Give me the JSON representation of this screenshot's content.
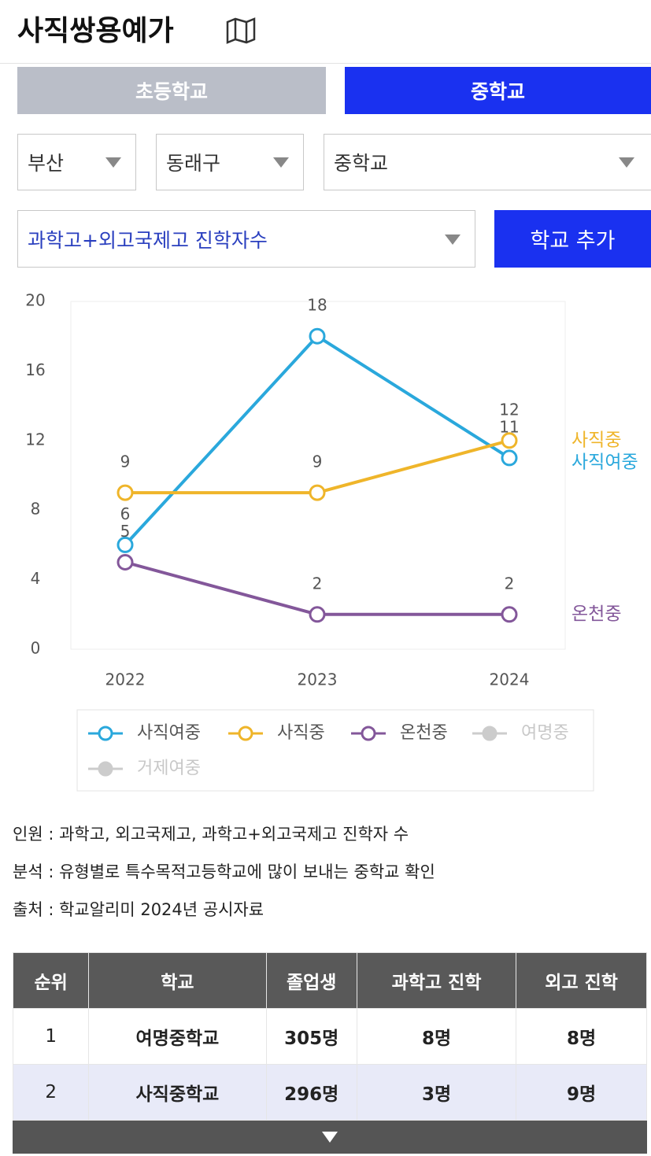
{
  "header": {
    "title": "사직쌍용예가"
  },
  "tabs": {
    "items": [
      "초등학교",
      "중학교"
    ],
    "active": 1
  },
  "filters": [
    "부산",
    "동래구",
    "중학교"
  ],
  "metric_select": "과학고+외고국제고 진학자수",
  "add_button": "학교 추가",
  "chart_data": {
    "type": "line",
    "categories": [
      "2022",
      "2023",
      "2024"
    ],
    "ylim": [
      0,
      20
    ],
    "yticks": [
      0,
      4,
      8,
      12,
      16,
      20
    ],
    "series": [
      {
        "name": "사직여중",
        "color": "#2aa8dc",
        "values": [
          6,
          18,
          11
        ],
        "visible": true
      },
      {
        "name": "사직중",
        "color": "#efb52a",
        "values": [
          9,
          9,
          12
        ],
        "visible": true
      },
      {
        "name": "온천중",
        "color": "#83579a",
        "values": [
          5,
          2,
          2
        ],
        "visible": true
      },
      {
        "name": "여명중",
        "color": "#cccccc",
        "values": [
          null,
          null,
          null
        ],
        "visible": false
      },
      {
        "name": "거제여중",
        "color": "#cccccc",
        "values": [
          null,
          null,
          null
        ],
        "visible": false
      }
    ]
  },
  "notes": [
    "인원 : 과학고, 외고국제고, 과학고+외고국제고 진학자 수",
    "분석 : 유형별로 특수목적고등학교에 많이 보내는 중학교 확인",
    "출처 : 학교알리미 2024년 공시자료"
  ],
  "table": {
    "headers": [
      "순위",
      "학교",
      "졸업생",
      "과학고 진학",
      "외고 진학"
    ],
    "rows": [
      [
        "1",
        "여명중학교",
        "305명",
        "8명",
        "8명"
      ],
      [
        "2",
        "사직중학교",
        "296명",
        "3명",
        "9명"
      ]
    ]
  }
}
